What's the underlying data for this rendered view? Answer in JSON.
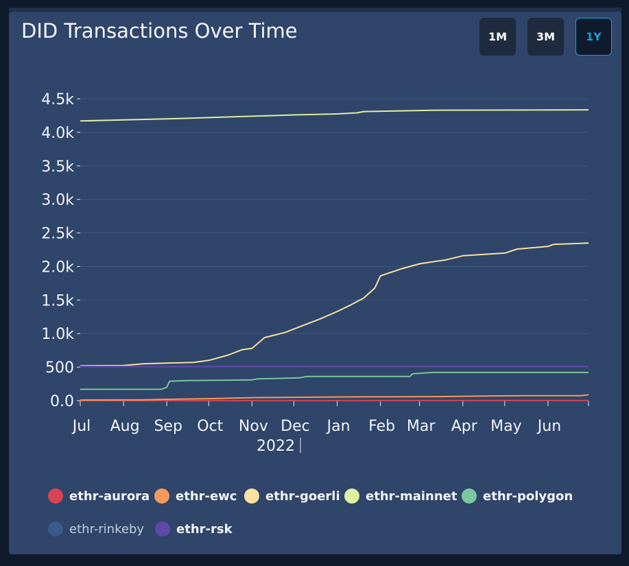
{
  "title": "DID Transactions Over Time",
  "range_buttons": [
    {
      "label": "1M",
      "active": false
    },
    {
      "label": "3M",
      "active": false
    },
    {
      "label": "1Y",
      "active": true
    }
  ],
  "chart_data": {
    "type": "line",
    "title": "DID Transactions Over Time",
    "xlabel": "",
    "ylabel": "",
    "x_ticks": [
      "Jul",
      "Aug",
      "Sep",
      "Oct",
      "Nov",
      "Dec",
      "Jan",
      "Feb",
      "Mar",
      "Apr",
      "May",
      "Jun"
    ],
    "x_year_label": "2022",
    "y_ticks": [
      "0.0",
      "500",
      "1.0k",
      "1.5k",
      "2.0k",
      "2.5k",
      "3.0k",
      "3.5k",
      "4.0k",
      "4.5k"
    ],
    "ylim": [
      0,
      4500
    ],
    "xlim": [
      "2021-07-01",
      "2022-06-30"
    ],
    "grid": true,
    "legend_position": "bottom",
    "series": [
      {
        "name": "ethr-aurora",
        "color": "#d94452",
        "visible": true,
        "points": [
          [
            "2021-07-01",
            0
          ],
          [
            "2022-06-30",
            3
          ]
        ]
      },
      {
        "name": "ethr-ewc",
        "color": "#f59a5b",
        "visible": true,
        "points": [
          [
            "2021-07-01",
            10
          ],
          [
            "2021-08-15",
            12
          ],
          [
            "2021-09-01",
            20
          ],
          [
            "2021-10-01",
            30
          ],
          [
            "2021-11-01",
            45
          ],
          [
            "2021-12-01",
            50
          ],
          [
            "2022-01-01",
            55
          ],
          [
            "2022-03-15",
            60
          ],
          [
            "2022-04-15",
            70
          ],
          [
            "2022-05-15",
            75
          ],
          [
            "2022-06-25",
            75
          ],
          [
            "2022-06-30",
            90
          ]
        ]
      },
      {
        "name": "ethr-goerli",
        "color": "#fbe29f",
        "visible": true,
        "points": [
          [
            "2021-07-01",
            520
          ],
          [
            "2021-08-01",
            525
          ],
          [
            "2021-08-15",
            550
          ],
          [
            "2021-09-01",
            560
          ],
          [
            "2021-09-20",
            570
          ],
          [
            "2021-10-01",
            600
          ],
          [
            "2021-10-15",
            680
          ],
          [
            "2021-10-25",
            760
          ],
          [
            "2021-11-01",
            780
          ],
          [
            "2021-11-10",
            940
          ],
          [
            "2021-11-25",
            1020
          ],
          [
            "2021-12-05",
            1100
          ],
          [
            "2021-12-20",
            1220
          ],
          [
            "2022-01-01",
            1330
          ],
          [
            "2022-01-10",
            1420
          ],
          [
            "2022-01-20",
            1530
          ],
          [
            "2022-01-28",
            1680
          ],
          [
            "2022-02-01",
            1860
          ],
          [
            "2022-02-15",
            1960
          ],
          [
            "2022-03-01",
            2040
          ],
          [
            "2022-03-20",
            2100
          ],
          [
            "2022-04-01",
            2160
          ],
          [
            "2022-05-01",
            2200
          ],
          [
            "2022-05-10",
            2260
          ],
          [
            "2022-06-01",
            2300
          ],
          [
            "2022-06-05",
            2330
          ],
          [
            "2022-06-30",
            2350
          ]
        ]
      },
      {
        "name": "ethr-mainnet",
        "color": "#dff0a1",
        "visible": true,
        "points": [
          [
            "2021-07-01",
            4170
          ],
          [
            "2021-08-01",
            4185
          ],
          [
            "2021-09-01",
            4200
          ],
          [
            "2021-10-01",
            4220
          ],
          [
            "2021-11-01",
            4240
          ],
          [
            "2021-12-01",
            4260
          ],
          [
            "2022-01-01",
            4275
          ],
          [
            "2022-01-15",
            4290
          ],
          [
            "2022-01-20",
            4310
          ],
          [
            "2022-02-15",
            4320
          ],
          [
            "2022-03-15",
            4330
          ],
          [
            "2022-06-30",
            4335
          ]
        ]
      },
      {
        "name": "ethr-polygon",
        "color": "#7cc7a0",
        "visible": true,
        "points": [
          [
            "2021-07-01",
            170
          ],
          [
            "2021-08-28",
            170
          ],
          [
            "2021-09-01",
            200
          ],
          [
            "2021-09-03",
            290
          ],
          [
            "2021-09-15",
            300
          ],
          [
            "2021-11-01",
            310
          ],
          [
            "2021-11-05",
            325
          ],
          [
            "2021-12-05",
            340
          ],
          [
            "2021-12-10",
            360
          ],
          [
            "2022-02-22",
            360
          ],
          [
            "2022-02-24",
            400
          ],
          [
            "2022-03-10",
            420
          ],
          [
            "2022-06-30",
            420
          ]
        ]
      },
      {
        "name": "ethr-rinkeby",
        "color": "#3a5b8a",
        "visible": false,
        "points": []
      },
      {
        "name": "ethr-rsk",
        "color": "#5d4aa6",
        "visible": true,
        "points": [
          [
            "2021-07-01",
            510
          ],
          [
            "2022-06-30",
            510
          ]
        ]
      }
    ]
  }
}
